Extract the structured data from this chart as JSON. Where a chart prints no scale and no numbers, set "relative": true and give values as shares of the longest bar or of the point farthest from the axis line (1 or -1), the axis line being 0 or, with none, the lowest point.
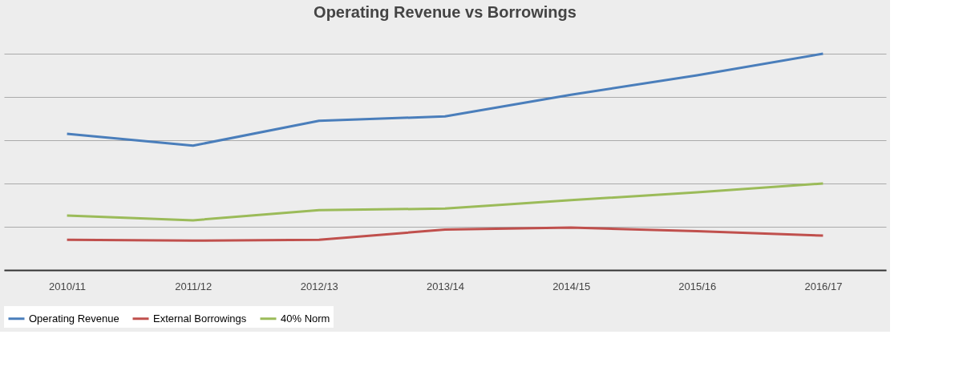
{
  "chart_data": {
    "type": "line",
    "title": "Operating Revenue vs Borrowings",
    "relative": true,
    "grid": "y",
    "legend": "bottom",
    "categories": [
      "2010/11",
      "2011/12",
      "2012/13",
      "2013/14",
      "2014/15",
      "2015/16",
      "2016/17"
    ],
    "series": [
      {
        "name": "Operating Revenue",
        "color": "#4a7ebb",
        "values": [
          0.63,
          0.575,
          0.69,
          0.71,
          0.81,
          0.9,
          1
        ]
      },
      {
        "name": "External Borrowings",
        "color": "#c0504d",
        "values": [
          0.14,
          0.136,
          0.14,
          0.187,
          0.196,
          0.18,
          0.159
        ]
      },
      {
        "name": "40% Norm",
        "color": "#9bbb59",
        "values": [
          0.252,
          0.23,
          0.277,
          0.284,
          0.323,
          0.359,
          0.4
        ]
      }
    ]
  }
}
